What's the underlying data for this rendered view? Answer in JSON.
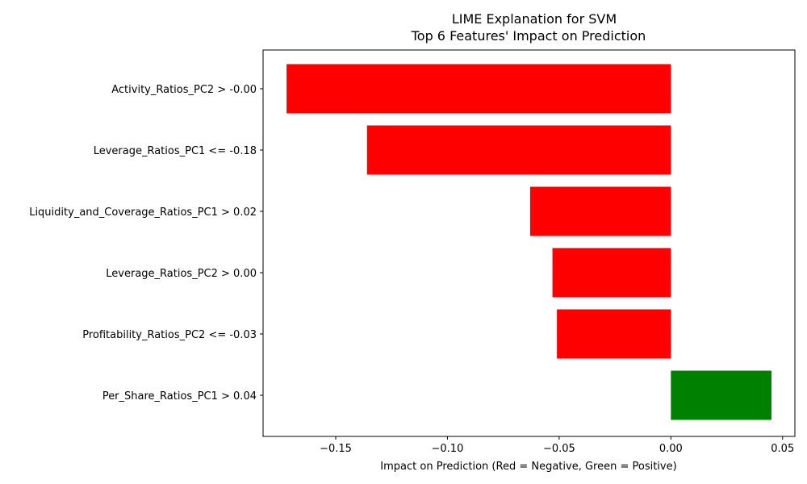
{
  "chart_data": {
    "type": "bar",
    "orientation": "horizontal",
    "title": "LIME Explanation for SVM",
    "subtitle": "Top 6 Features' Impact on Prediction",
    "xlabel": "Impact on Prediction (Red = Negative, Green = Positive)",
    "ylabel": "",
    "xlim": [
      -0.1825,
      0.0555
    ],
    "xticks": [
      -0.15,
      -0.1,
      -0.05,
      0.0,
      0.05
    ],
    "xtick_labels": [
      "−0.15",
      "−0.10",
      "−0.05",
      "0.00",
      "0.05"
    ],
    "categories": [
      "Activity_Ratios_PC2 > -0.00",
      "Leverage_Ratios_PC1 <= -0.18",
      "Liquidity_and_Coverage_Ratios_PC1 > 0.02",
      "Leverage_Ratios_PC2 > 0.00",
      "Profitability_Ratios_PC2 <= -0.03",
      "Per_Share_Ratios_PC1 > 0.04"
    ],
    "values": [
      -0.172,
      -0.136,
      -0.063,
      -0.053,
      -0.051,
      0.045
    ],
    "colors": {
      "negative": "#ff0000",
      "positive": "#008000"
    },
    "grid": false,
    "legend": "none"
  }
}
